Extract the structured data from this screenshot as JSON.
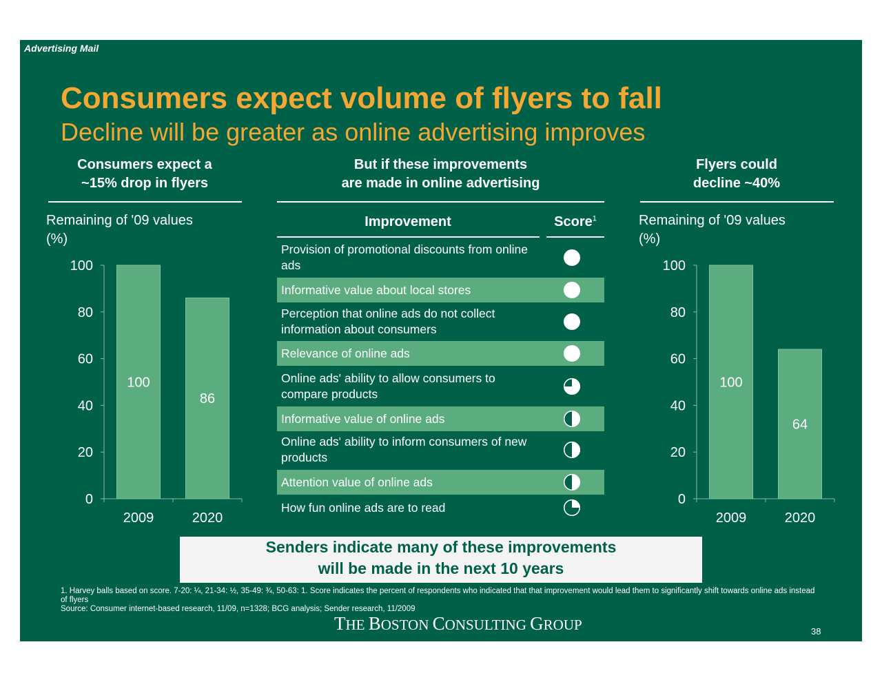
{
  "section_tag": "Advertising Mail",
  "title": "Consumers expect volume of flyers to fall",
  "subtitle": "Decline will be greater as online advertising improves",
  "columns": {
    "left_header": [
      "Consumers expect a",
      "~15% drop in flyers"
    ],
    "middle_header": [
      "But if these improvements",
      "are made in online advertising"
    ],
    "right_header": [
      "Flyers could",
      "decline ~40%"
    ]
  },
  "table": {
    "header_improvement": "Improvement",
    "header_score": "Score",
    "header_score_footnote": "1",
    "rows": [
      {
        "text": "Provision of promotional discounts from online ads",
        "ball": 1.0
      },
      {
        "text": "Informative value about local stores",
        "ball": 1.0
      },
      {
        "text": "Perception that online ads do not collect information about consumers",
        "ball": 1.0
      },
      {
        "text": "Relevance of online ads",
        "ball": 1.0
      },
      {
        "text": "Online ads' ability to allow consumers to compare products",
        "ball": 0.75
      },
      {
        "text": "Informative value of online ads",
        "ball": 0.5
      },
      {
        "text": "Online ads' ability to inform consumers of new products",
        "ball": 0.5
      },
      {
        "text": "Attention value of online ads",
        "ball": 0.5
      },
      {
        "text": "How fun online ads are to read",
        "ball": 0.25
      }
    ]
  },
  "chart_data": [
    {
      "type": "bar",
      "ylabel": "Remaining of '09 values",
      "ylabel_unit": "(%)",
      "categories": [
        "2009",
        "2020"
      ],
      "values": [
        100,
        86
      ],
      "data_labels": [
        "100",
        "86"
      ],
      "yticks": [
        0,
        20,
        40,
        60,
        80,
        100
      ],
      "ylim": [
        0,
        100
      ],
      "grid": false,
      "bar_color": "#5bad7f"
    },
    {
      "type": "bar",
      "ylabel": "Remaining of '09 values",
      "ylabel_unit": "(%)",
      "categories": [
        "2009",
        "2020"
      ],
      "values": [
        100,
        64
      ],
      "data_labels": [
        "100",
        "64"
      ],
      "yticks": [
        0,
        20,
        40,
        60,
        80,
        100
      ],
      "ylim": [
        0,
        100
      ],
      "grid": false,
      "bar_color": "#5bad7f"
    }
  ],
  "callout": [
    "Senders indicate many of these improvements",
    "will be made in the next 10 years"
  ],
  "footnotes": [
    "1. Harvey balls based on score. 7-20: ¼, 21-34: ½, 35-49: ¾, 50-63: 1. Score indicates the percent of respondents who indicated that that improvement would lead them to significantly shift towards online ads instead of flyers",
    "Source: Consumer internet-based research, 11/09, n=1328; BCG analysis; Sender research, 11/2009"
  ],
  "logo": {
    "part1": "T",
    "part2": "HE ",
    "part3": "B",
    "part4": "OSTON ",
    "part5": "C",
    "part6": "ONSULTING ",
    "part7": "G",
    "part8": "ROUP"
  },
  "page_number": "38",
  "colors": {
    "background": "#006048",
    "accent": "#f5a733",
    "bar": "#5bad7f",
    "callout_text": "#006048"
  }
}
